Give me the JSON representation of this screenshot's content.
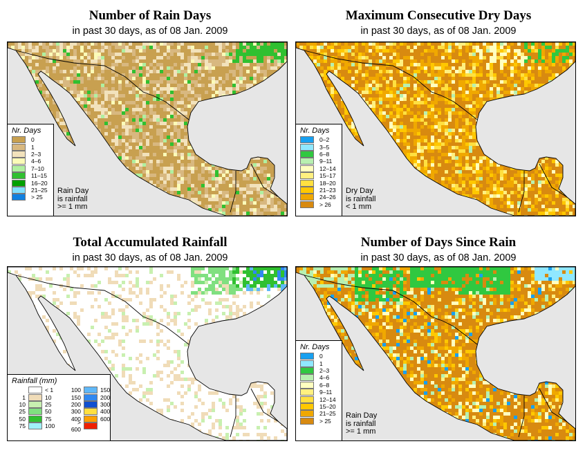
{
  "subtitle": "in past 30 days, as of  08 Jan. 2009",
  "panels": [
    {
      "title": "Number of Rain Days",
      "legend_title": "Nr. Days",
      "legend": [
        {
          "label": "0",
          "color": "#c8a050"
        },
        {
          "label": "1",
          "color": "#d8b880"
        },
        {
          "label": "2–3",
          "color": "#f2e2bc"
        },
        {
          "label": "4–6",
          "color": "#fbfbb8"
        },
        {
          "label": "7–10",
          "color": "#b0f0a0"
        },
        {
          "label": "11–15",
          "color": "#30c030"
        },
        {
          "label": "16–20",
          "color": "#00a000"
        },
        {
          "label": "21–25",
          "color": "#80e0ff"
        },
        {
          "label": "> 25",
          "color": "#1080e0"
        }
      ],
      "note": [
        "Rain Day",
        "is rainfall",
        ">= 1 mm"
      ]
    },
    {
      "title": "Maximum Consecutive Dry Days",
      "legend_title": "Nr. Days",
      "legend": [
        {
          "label": "0–2",
          "color": "#18a0f0"
        },
        {
          "label": "3–5",
          "color": "#90e8ff"
        },
        {
          "label": "6–8",
          "color": "#30c840"
        },
        {
          "label": "9–11",
          "color": "#b8f0b0"
        },
        {
          "label": "12–14",
          "color": "#ffffc0"
        },
        {
          "label": "15–17",
          "color": "#fff080"
        },
        {
          "label": "18–20",
          "color": "#ffe040"
        },
        {
          "label": "21–23",
          "color": "#ffc800"
        },
        {
          "label": "24–26",
          "color": "#f0a800"
        },
        {
          "label": "> 26",
          "color": "#d88a10"
        }
      ],
      "note": [
        "Dry Day",
        "is rainfall",
        "< 1 mm"
      ]
    },
    {
      "title": "Total Accumulated Rainfall",
      "legend_title": "Rainfall (mm)",
      "legend_left": [
        {
          "a": "",
          "b": "< 1",
          "color": "#ffffff"
        },
        {
          "a": "1",
          "b": "10",
          "color": "#f0dcb8"
        },
        {
          "a": "10",
          "b": "25",
          "color": "#c8f0b0"
        },
        {
          "a": "25",
          "b": "50",
          "color": "#80e080"
        },
        {
          "a": "50",
          "b": "75",
          "color": "#30c030"
        },
        {
          "a": "75",
          "b": "100",
          "color": "#a0f0f8"
        }
      ],
      "legend_right": [
        {
          "a": "100",
          "b": "150",
          "color": "#60b8f8"
        },
        {
          "a": "150",
          "b": "200",
          "color": "#3088f0"
        },
        {
          "a": "200",
          "b": "300",
          "color": "#1050d0"
        },
        {
          "a": "300",
          "b": "400",
          "color": "#ffe040"
        },
        {
          "a": "400",
          "b": "600",
          "color": "#ffa000"
        },
        {
          "a": "> 600",
          "b": "",
          "color": "#f02000"
        }
      ]
    },
    {
      "title": "Number of Days Since Rain",
      "legend_title": "Nr. Days",
      "legend": [
        {
          "label": "0",
          "color": "#18a0f0"
        },
        {
          "label": "1",
          "color": "#90e8ff"
        },
        {
          "label": "2–3",
          "color": "#30c840"
        },
        {
          "label": "4–6",
          "color": "#b8f0b0"
        },
        {
          "label": "6–8",
          "color": "#ffffc0"
        },
        {
          "label": "9–11",
          "color": "#fff080"
        },
        {
          "label": "12–14",
          "color": "#ffe040"
        },
        {
          "label": "15–20",
          "color": "#ffc800"
        },
        {
          "label": "21–25",
          "color": "#f0a800"
        },
        {
          "label": "> 25",
          "color": "#d88a10"
        }
      ],
      "note": [
        "Rain Day",
        "is rainfall",
        ">= 1 mm"
      ]
    }
  ]
}
